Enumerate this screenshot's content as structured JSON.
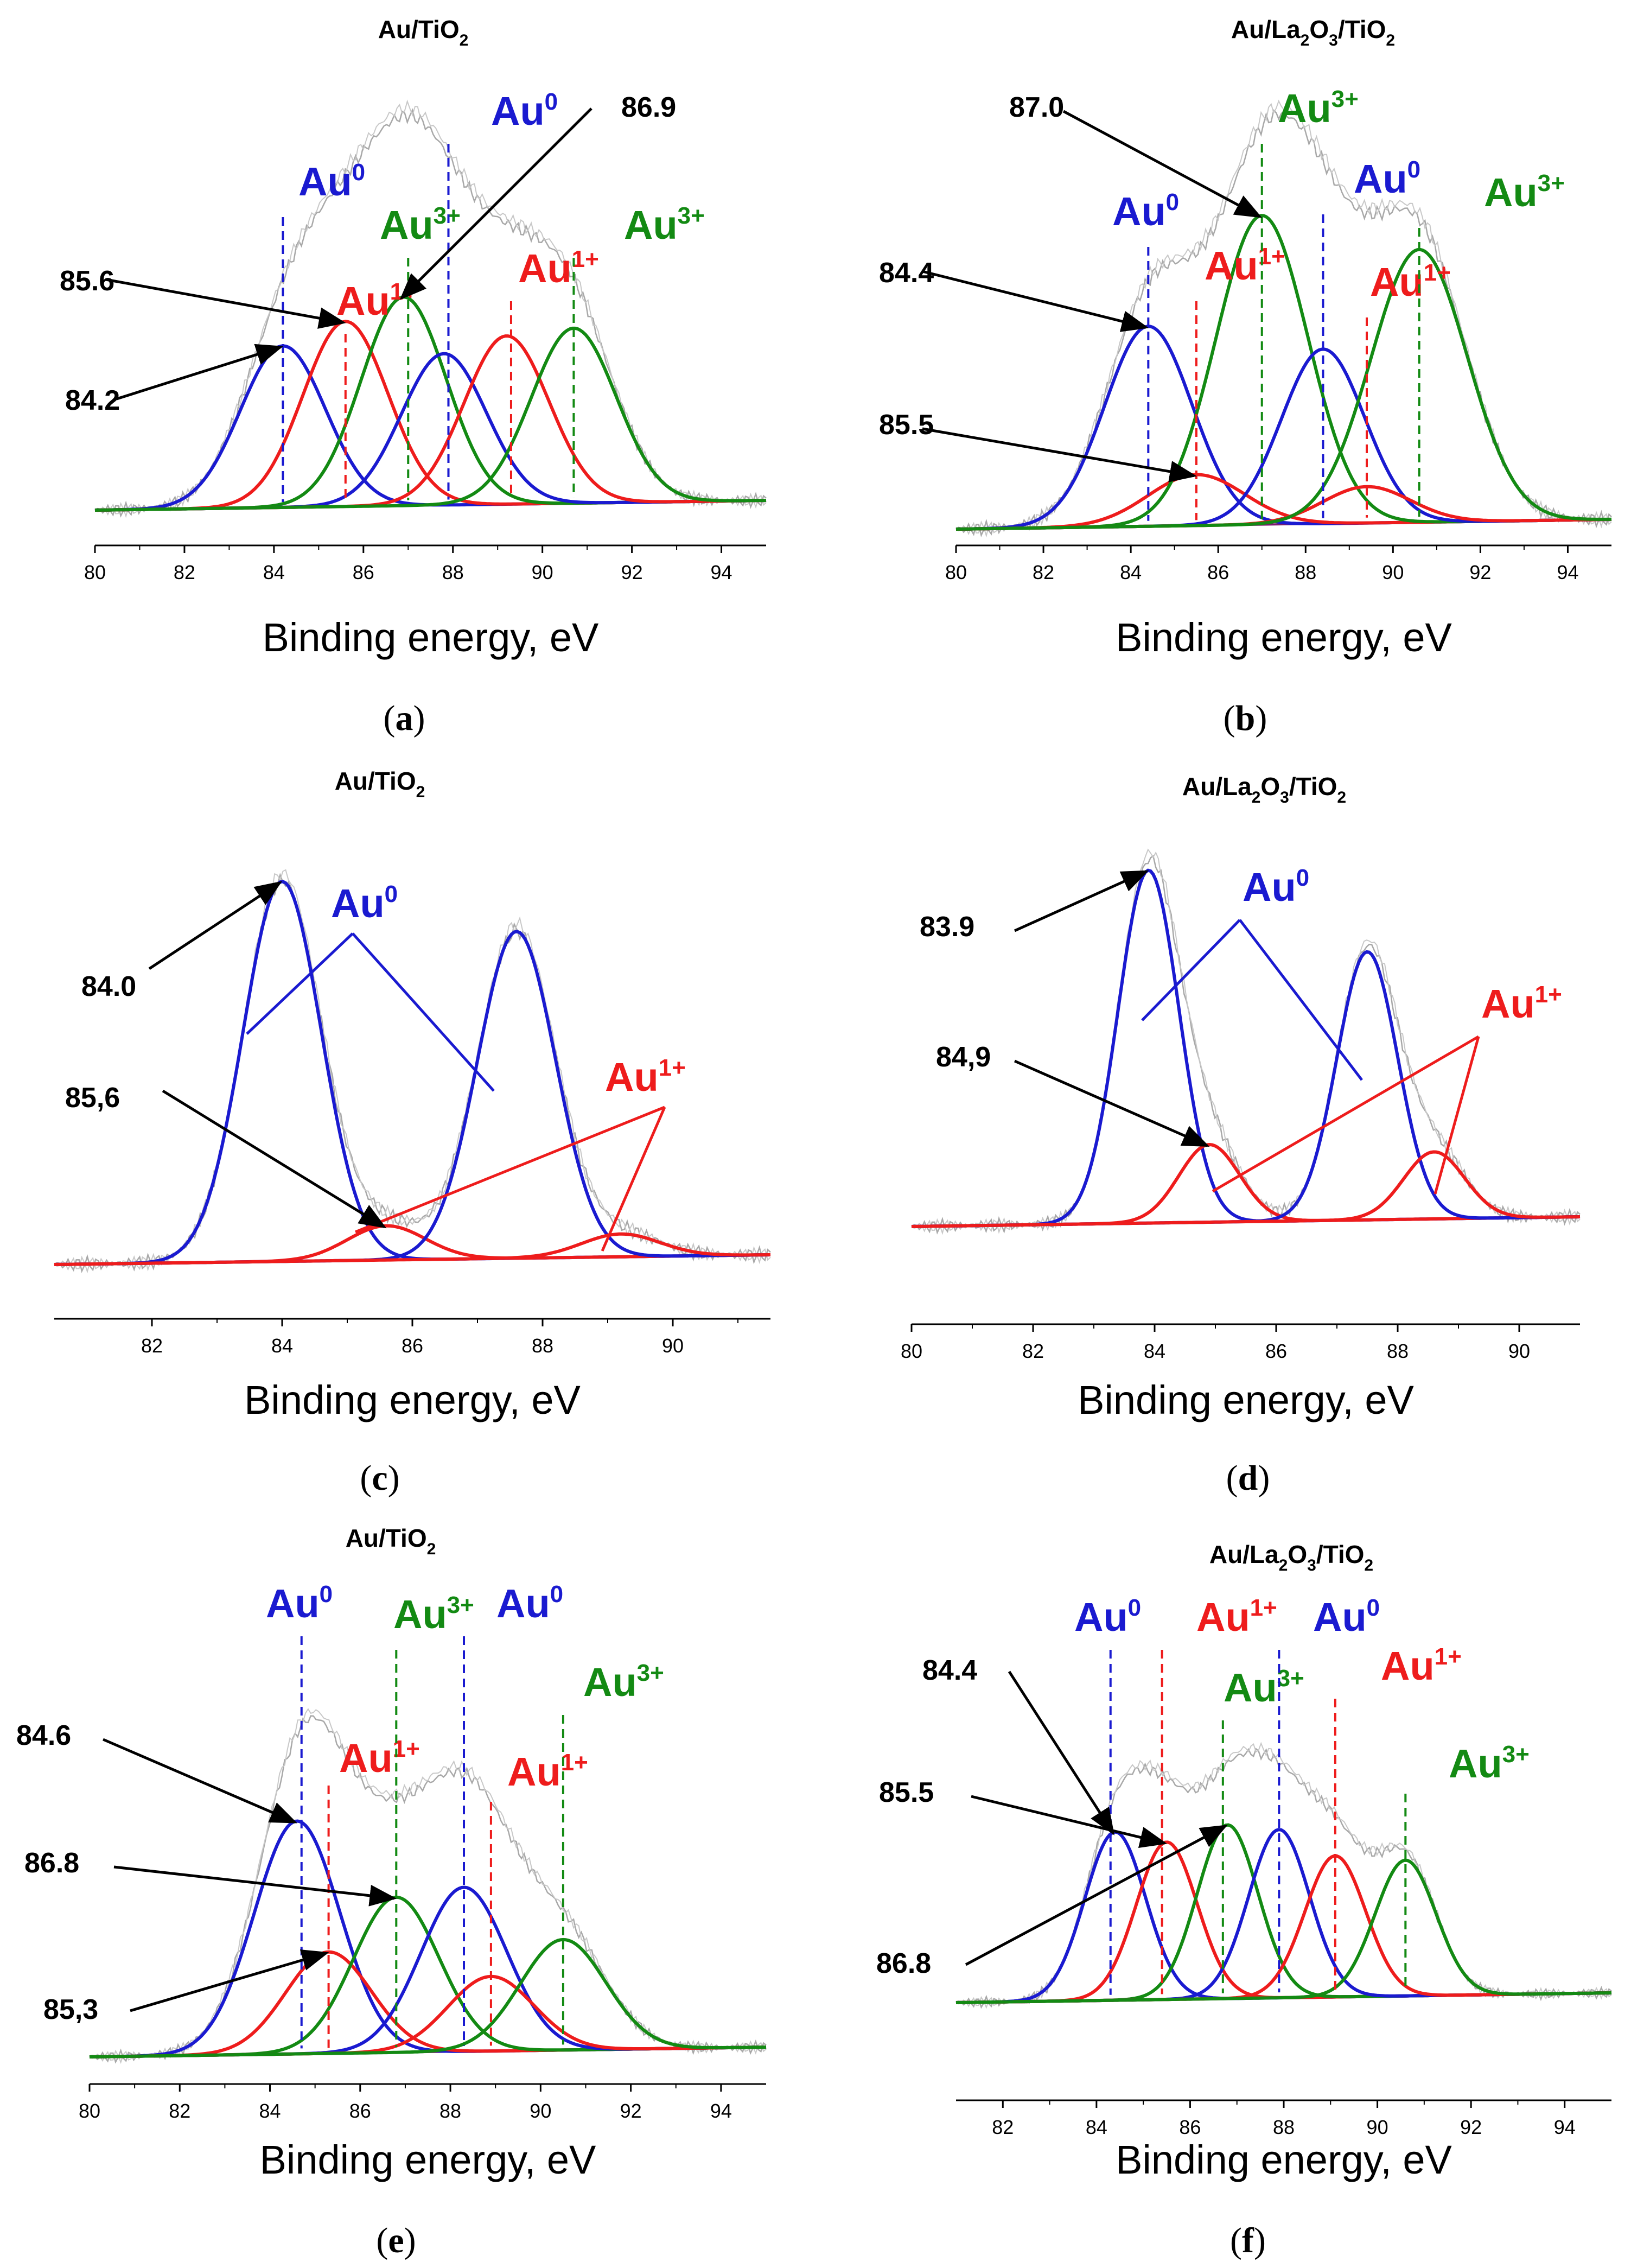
{
  "colors": {
    "Au0": "#1a1ad0",
    "Au1": "#ee1c1c",
    "Au3": "#138a13",
    "envelope": "#a8a8a8",
    "arrow": "#000000"
  },
  "chart_data": [
    {
      "caption": "a",
      "type": "line",
      "title": {
        "main": "Au/TiO",
        "sub": "2",
        "tail": ""
      },
      "xlabel": "Binding energy, eV",
      "xlim": [
        80,
        95
      ],
      "xticks": [
        "80",
        "82",
        "84",
        "86",
        "88",
        "90",
        "92",
        "94"
      ],
      "peaks": [
        {
          "series": "Au0",
          "center": 84.2,
          "amplitude": 0.48,
          "sigma": 0.95
        },
        {
          "series": "Au1",
          "center": 85.6,
          "amplitude": 0.55,
          "sigma": 0.95
        },
        {
          "series": "Au3",
          "center": 86.9,
          "amplitude": 0.62,
          "sigma": 0.95
        },
        {
          "series": "Au0",
          "center": 87.8,
          "amplitude": 0.45,
          "sigma": 0.95
        },
        {
          "series": "Au1",
          "center": 89.2,
          "amplitude": 0.5,
          "sigma": 0.95
        },
        {
          "series": "Au3",
          "center": 90.7,
          "amplitude": 0.52,
          "sigma": 0.95
        }
      ],
      "species_labels": [
        {
          "series": "Au0",
          "base": "Au",
          "sup": "0",
          "x": 84.2
        },
        {
          "series": "Au1",
          "base": "Au",
          "sup": "1+",
          "x": 85.6
        },
        {
          "series": "Au3",
          "base": "Au",
          "sup": "3+",
          "x": 87.0
        },
        {
          "series": "Au0",
          "base": "Au",
          "sup": "0",
          "x": 87.9
        },
        {
          "series": "Au1",
          "base": "Au",
          "sup": "1+",
          "x": 89.3
        },
        {
          "series": "Au3",
          "base": "Au",
          "sup": "3+",
          "x": 90.7
        }
      ],
      "value_labels": [
        "85.6",
        "84.2",
        "86.9"
      ]
    },
    {
      "caption": "b",
      "type": "line",
      "title": {
        "main": "Au/La",
        "sub": "2",
        "mid": "O",
        "sub2": "3",
        "tail": "/TiO",
        "sub3": "2"
      },
      "xlabel": "Binding energy, eV",
      "xlim": [
        80,
        95
      ],
      "xticks": [
        "80",
        "82",
        "84",
        "86",
        "88",
        "90",
        "92",
        "94"
      ],
      "peaks": [
        {
          "series": "Au0",
          "center": 84.4,
          "amplitude": 0.55,
          "sigma": 1.0
        },
        {
          "series": "Au1",
          "center": 85.5,
          "amplitude": 0.14,
          "sigma": 1.1
        },
        {
          "series": "Au3",
          "center": 87.0,
          "amplitude": 0.85,
          "sigma": 1.05
        },
        {
          "series": "Au0",
          "center": 88.4,
          "amplitude": 0.48,
          "sigma": 0.95
        },
        {
          "series": "Au1",
          "center": 89.4,
          "amplitude": 0.1,
          "sigma": 1.0
        },
        {
          "series": "Au3",
          "center": 90.6,
          "amplitude": 0.75,
          "sigma": 1.1
        }
      ],
      "species_labels": [
        {
          "series": "Au0",
          "base": "Au",
          "sup": "0",
          "x": 84.4
        },
        {
          "series": "Au1",
          "base": "Au",
          "sup": "1+",
          "x": 85.5
        },
        {
          "series": "Au3",
          "base": "Au",
          "sup": "3+",
          "x": 87.0
        },
        {
          "series": "Au0",
          "base": "Au",
          "sup": "0",
          "x": 88.4
        },
        {
          "series": "Au1",
          "base": "Au",
          "sup": "1+",
          "x": 89.4
        },
        {
          "series": "Au3",
          "base": "Au",
          "sup": "3+",
          "x": 90.6
        }
      ],
      "value_labels": [
        "87.0",
        "84.4",
        "85.5"
      ]
    },
    {
      "caption": "c",
      "type": "line",
      "title": {
        "main": "Au/TiO",
        "sub": "2",
        "tail": ""
      },
      "xlabel": "Binding energy, eV",
      "xlim": [
        80.5,
        91.5
      ],
      "xticks": [
        "82",
        "84",
        "86",
        "88",
        "90"
      ],
      "peaks": [
        {
          "series": "Au0",
          "center": 84.0,
          "amplitude": 1.0,
          "sigma": 0.6
        },
        {
          "series": "Au1",
          "center": 85.6,
          "amplitude": 0.09,
          "sigma": 0.6
        },
        {
          "series": "Au0",
          "center": 87.6,
          "amplitude": 0.86,
          "sigma": 0.6
        },
        {
          "series": "Au1",
          "center": 89.2,
          "amplitude": 0.06,
          "sigma": 0.6
        }
      ],
      "species_labels": [
        {
          "series": "Au0",
          "base": "Au",
          "sup": "0"
        },
        {
          "series": "Au1",
          "base": "Au",
          "sup": "1+"
        }
      ],
      "value_labels": [
        "84.0",
        "85,6"
      ]
    },
    {
      "caption": "d",
      "type": "line",
      "title": {
        "main": "Au/La",
        "sub": "2",
        "mid": "O",
        "sub2": "3",
        "tail": "/TiO",
        "sub3": "2"
      },
      "xlabel": "Binding energy, eV",
      "xlim": [
        80,
        91
      ],
      "xticks": [
        "80",
        "82",
        "84",
        "86",
        "88",
        "90"
      ],
      "peaks": [
        {
          "series": "Au0",
          "center": 83.9,
          "amplitude": 1.0,
          "sigma": 0.5
        },
        {
          "series": "Au1",
          "center": 84.9,
          "amplitude": 0.22,
          "sigma": 0.5
        },
        {
          "series": "Au0",
          "center": 87.5,
          "amplitude": 0.76,
          "sigma": 0.5
        },
        {
          "series": "Au1",
          "center": 88.6,
          "amplitude": 0.19,
          "sigma": 0.5
        }
      ],
      "species_labels": [
        {
          "series": "Au0",
          "base": "Au",
          "sup": "0"
        },
        {
          "series": "Au1",
          "base": "Au",
          "sup": "1+"
        }
      ],
      "value_labels": [
        "83.9",
        "84,9"
      ]
    },
    {
      "caption": "e",
      "type": "line",
      "title": {
        "main": "Au/TiO",
        "sub": "2",
        "tail": ""
      },
      "xlabel": "Binding energy, eV",
      "xlim": [
        80,
        95
      ],
      "xticks": [
        "80",
        "82",
        "84",
        "86",
        "88",
        "90",
        "92",
        "94"
      ],
      "peaks": [
        {
          "series": "Au0",
          "center": 84.6,
          "amplitude": 0.78,
          "sigma": 0.95
        },
        {
          "series": "Au1",
          "center": 85.3,
          "amplitude": 0.34,
          "sigma": 0.95
        },
        {
          "series": "Au3",
          "center": 86.8,
          "amplitude": 0.52,
          "sigma": 0.95
        },
        {
          "series": "Au0",
          "center": 88.3,
          "amplitude": 0.55,
          "sigma": 0.95
        },
        {
          "series": "Au1",
          "center": 88.9,
          "amplitude": 0.25,
          "sigma": 0.95
        },
        {
          "series": "Au3",
          "center": 90.5,
          "amplitude": 0.37,
          "sigma": 0.95
        }
      ],
      "species_labels": [
        {
          "series": "Au0",
          "base": "Au",
          "sup": "0",
          "x": 84.7
        },
        {
          "series": "Au1",
          "base": "Au",
          "sup": "1+",
          "x": 85.3
        },
        {
          "series": "Au3",
          "base": "Au",
          "sup": "3+",
          "x": 86.8
        },
        {
          "series": "Au0",
          "base": "Au",
          "sup": "0",
          "x": 88.3
        },
        {
          "series": "Au1",
          "base": "Au",
          "sup": "1+",
          "x": 88.9
        },
        {
          "series": "Au3",
          "base": "Au",
          "sup": "3+",
          "x": 90.5
        }
      ],
      "value_labels": [
        "84.6",
        "86.8",
        "85,3"
      ]
    },
    {
      "caption": "f",
      "type": "line",
      "title": {
        "main": "Au/La",
        "sub": "2",
        "mid": "O",
        "sub2": "3",
        "tail": "/TiO",
        "sub3": "2"
      },
      "xlabel": "Binding energy, eV",
      "xlim": [
        81,
        95
      ],
      "xticks": [
        "82",
        "84",
        "86",
        "88",
        "90",
        "92",
        "94"
      ],
      "peaks": [
        {
          "series": "Au0",
          "center": 84.4,
          "amplitude": 0.62,
          "sigma": 0.65
        },
        {
          "series": "Au1",
          "center": 85.5,
          "amplitude": 0.58,
          "sigma": 0.65
        },
        {
          "series": "Au3",
          "center": 86.8,
          "amplitude": 0.64,
          "sigma": 0.65
        },
        {
          "series": "Au0",
          "center": 87.9,
          "amplitude": 0.62,
          "sigma": 0.65
        },
        {
          "series": "Au1",
          "center": 89.1,
          "amplitude": 0.52,
          "sigma": 0.65
        },
        {
          "series": "Au3",
          "center": 90.6,
          "amplitude": 0.5,
          "sigma": 0.65
        }
      ],
      "species_labels": [
        {
          "series": "Au0",
          "base": "Au",
          "sup": "0",
          "x": 84.3
        },
        {
          "series": "Au1",
          "base": "Au",
          "sup": "1+",
          "x": 85.4
        },
        {
          "series": "Au3",
          "base": "Au",
          "sup": "3+",
          "x": 86.7
        },
        {
          "series": "Au0",
          "base": "Au",
          "sup": "0",
          "x": 87.9
        },
        {
          "series": "Au1",
          "base": "Au",
          "sup": "1+",
          "x": 89.1
        },
        {
          "series": "Au3",
          "base": "Au",
          "sup": "3+",
          "x": 90.6
        }
      ],
      "value_labels": [
        "84.4",
        "85.5",
        "86.8"
      ]
    }
  ]
}
